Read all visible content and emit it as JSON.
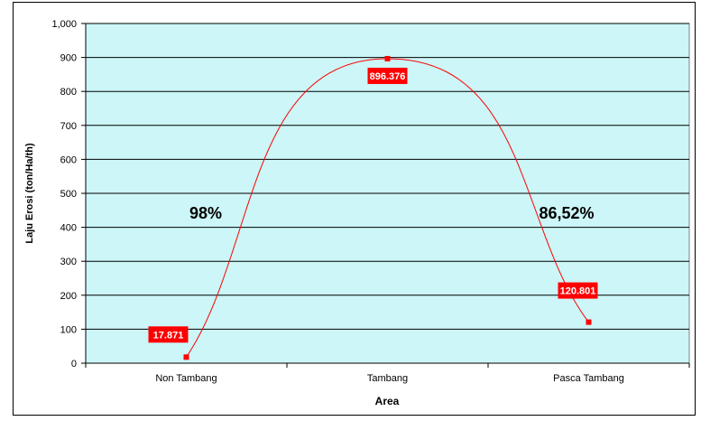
{
  "chart_data": {
    "type": "line",
    "title": "",
    "xlabel": "Area",
    "ylabel": "Laju Erosi (ton/Ha/th)",
    "ylim": [
      0,
      1000
    ],
    "yticks": [
      "0",
      "100",
      "200",
      "300",
      "400",
      "500",
      "600",
      "700",
      "800",
      "900",
      "1,000"
    ],
    "categories": [
      "Non Tambang",
      "Tambang",
      "Pasca Tambang"
    ],
    "series": [
      {
        "values": [
          17.871,
          896.376,
          120.801
        ],
        "data_labels": [
          "17.871",
          "896.376",
          "120.801"
        ]
      }
    ],
    "annotations": [
      "98%",
      "86,52%"
    ],
    "grid": true,
    "smooth": true,
    "colors": {
      "plot_bg": "#ccf6f7",
      "line": "#ff0000",
      "label_bg": "#ff0000",
      "label_text": "#ffffff"
    }
  }
}
